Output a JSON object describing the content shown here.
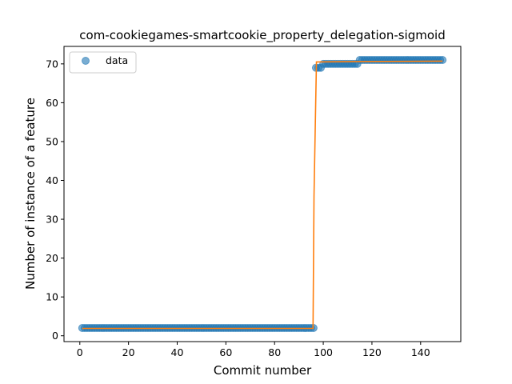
{
  "chart_data": {
    "type": "scatter",
    "title": "com-cookiegames-smartcookie_property_delegation-sigmoid",
    "xlabel": "Commit number",
    "ylabel": "Number of instance of a feature",
    "xlim": [
      -6.5,
      156.5
    ],
    "ylim": [
      -1.5,
      74.5
    ],
    "xticks": [
      0,
      20,
      40,
      60,
      80,
      100,
      120,
      140
    ],
    "yticks": [
      0,
      10,
      20,
      30,
      40,
      50,
      60,
      70
    ],
    "grid": false,
    "legend": {
      "position": "top-left",
      "entries": [
        "data"
      ]
    },
    "colors": {
      "data": "#1f77b4",
      "fit": "#ff7f0e"
    },
    "series": [
      {
        "name": "data",
        "style": "markers",
        "segments": [
          {
            "x_start": 1,
            "x_end": 96,
            "y": 2
          },
          {
            "x_start": 97,
            "x_end": 99,
            "y": 69
          },
          {
            "x_start": 100,
            "x_end": 114,
            "y": 70
          },
          {
            "x_start": 115,
            "x_end": 149,
            "y": 71
          }
        ]
      },
      {
        "style": "line",
        "points": [
          [
            1,
            1.9
          ],
          [
            95.8,
            1.9
          ],
          [
            96.2,
            36
          ],
          [
            97.2,
            70.5
          ],
          [
            115,
            70.6
          ],
          [
            149,
            70.7
          ]
        ]
      }
    ]
  }
}
